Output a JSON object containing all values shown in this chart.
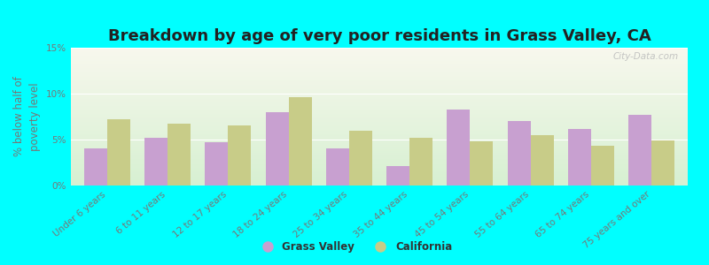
{
  "title": "Breakdown by age of very poor residents in Grass Valley, CA",
  "ylabel": "% below half of\npoverty level",
  "categories": [
    "Under 6 years",
    "6 to 11 years",
    "12 to 17 years",
    "18 to 24 years",
    "25 to 34 years",
    "35 to 44 years",
    "45 to 54 years",
    "55 to 64 years",
    "65 to 74 years",
    "75 years and over"
  ],
  "grass_valley": [
    4.0,
    5.2,
    4.7,
    8.0,
    4.0,
    2.1,
    8.3,
    7.0,
    6.2,
    7.7
  ],
  "california": [
    7.2,
    6.7,
    6.5,
    9.6,
    6.0,
    5.2,
    4.8,
    5.5,
    4.3,
    4.9
  ],
  "gv_color": "#c8a0d0",
  "ca_color": "#c8cc88",
  "bg_color": "#00ffff",
  "ylim": [
    0,
    15
  ],
  "yticks": [
    0,
    5,
    10,
    15
  ],
  "ytick_labels": [
    "0%",
    "5%",
    "10%",
    "15%"
  ],
  "title_fontsize": 13,
  "label_fontsize": 8.5,
  "tick_fontsize": 7.5,
  "legend_labels": [
    "Grass Valley",
    "California"
  ],
  "watermark": "City-Data.com",
  "bar_width": 0.38
}
